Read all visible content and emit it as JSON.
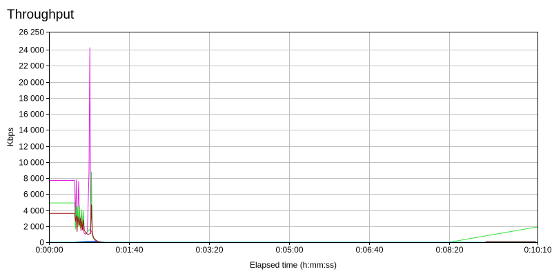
{
  "chart_data": {
    "type": "line",
    "title": "Throughput",
    "xlabel": "Elapsed time (h:mm:ss)",
    "ylabel": "Kbps",
    "x_unit": "seconds",
    "xlim": [
      0,
      610
    ],
    "ylim": [
      0,
      26250
    ],
    "x_ticks": [
      {
        "value": 0,
        "label": "0:00:00"
      },
      {
        "value": 100,
        "label": "0:01:40"
      },
      {
        "value": 200,
        "label": "0:03:20"
      },
      {
        "value": 300,
        "label": "0:05:00"
      },
      {
        "value": 400,
        "label": "0:06:40"
      },
      {
        "value": 500,
        "label": "0:08:20"
      },
      {
        "value": 610,
        "label": "0:10:10"
      }
    ],
    "y_ticks": [
      {
        "value": 0,
        "label": "0"
      },
      {
        "value": 2000,
        "label": "2 000"
      },
      {
        "value": 4000,
        "label": "4 000"
      },
      {
        "value": 6000,
        "label": "6 000"
      },
      {
        "value": 8000,
        "label": "8 000"
      },
      {
        "value": 10000,
        "label": "10 000"
      },
      {
        "value": 12000,
        "label": "12 000"
      },
      {
        "value": 14000,
        "label": "14 000"
      },
      {
        "value": 16000,
        "label": "16 000"
      },
      {
        "value": 18000,
        "label": "18 000"
      },
      {
        "value": 20000,
        "label": "20 000"
      },
      {
        "value": 22000,
        "label": "22 000"
      },
      {
        "value": 24000,
        "label": "24 000"
      },
      {
        "value": 26250,
        "label": "26 250"
      }
    ],
    "grid": true,
    "legend": false,
    "series": [
      {
        "color": "#e020e0",
        "x": [
          0,
          32,
          33,
          34,
          35,
          36,
          37,
          38,
          39,
          40,
          41,
          42,
          43,
          44,
          46,
          48,
          50,
          51,
          52,
          53,
          54,
          55,
          56,
          57,
          58,
          60,
          64,
          70,
          610
        ],
        "y": [
          7700,
          7700,
          2800,
          7800,
          3000,
          3300,
          7600,
          2600,
          2200,
          3300,
          2500,
          2000,
          1600,
          1100,
          1000,
          1300,
          8800,
          24300,
          1500,
          1400,
          1000,
          600,
          400,
          300,
          200,
          150,
          80,
          0,
          0
        ]
      },
      {
        "color": "#30e030",
        "x": [
          0,
          32,
          33,
          34,
          35,
          36,
          37,
          38,
          39,
          40,
          41,
          42,
          43,
          44,
          46,
          48,
          50,
          52,
          53,
          54,
          55,
          56,
          58,
          60,
          64,
          70,
          500,
          610
        ],
        "y": [
          4900,
          4900,
          1600,
          4500,
          1400,
          4400,
          2000,
          4600,
          1800,
          2300,
          4100,
          1700,
          3900,
          1500,
          1200,
          1300,
          1500,
          1700,
          8800,
          1200,
          600,
          400,
          300,
          150,
          50,
          0,
          0,
          1900
        ]
      },
      {
        "color": "#a01010",
        "x": [
          0,
          32,
          33,
          34,
          35,
          36,
          37,
          38,
          39,
          40,
          41,
          42,
          43,
          44,
          46,
          48,
          50,
          52,
          53,
          54,
          55,
          56,
          58,
          60,
          64,
          70,
          545,
          546,
          607,
          608,
          610
        ],
        "y": [
          3600,
          3600,
          2600,
          3300,
          1300,
          3200,
          2400,
          2100,
          3000,
          1400,
          2600,
          1500,
          2800,
          1500,
          1200,
          1000,
          1000,
          1100,
          4700,
          1300,
          800,
          500,
          300,
          150,
          50,
          0,
          0,
          100,
          100,
          0,
          0
        ]
      },
      {
        "color": "#0000c0",
        "x": [
          0,
          30,
          45,
          58,
          62,
          610
        ],
        "y": [
          0,
          0,
          80,
          100,
          0,
          0
        ]
      },
      {
        "color": "#00d0d0",
        "x": [
          0,
          610
        ],
        "y": [
          0,
          0
        ]
      }
    ]
  }
}
